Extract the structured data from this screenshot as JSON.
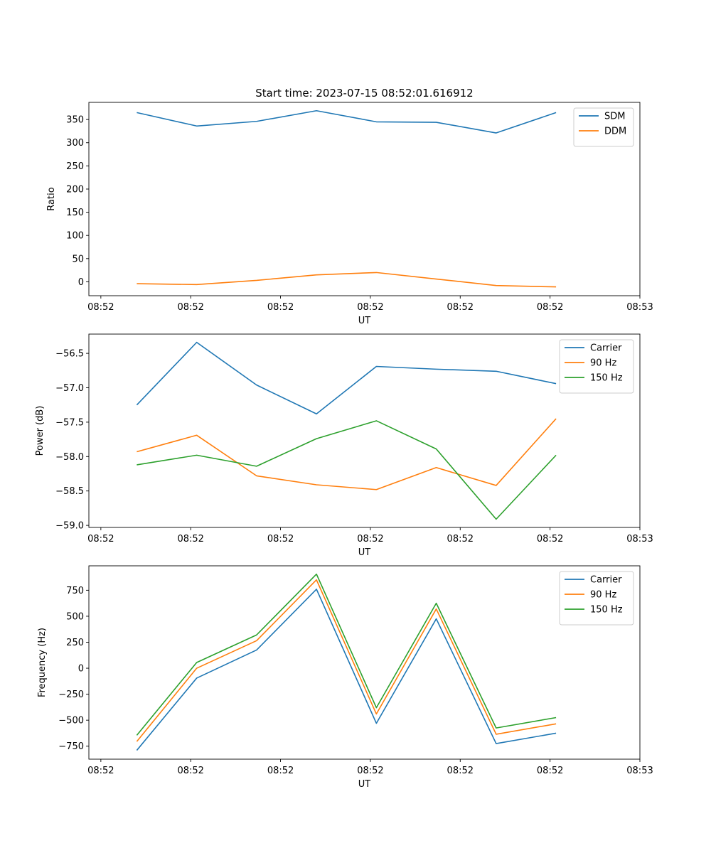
{
  "figure": {
    "title": "Start time: 2023-07-15 08:52:01.616912"
  },
  "colors": {
    "blue": "#1f77b4",
    "orange": "#ff7f0e",
    "green": "#2ca02c"
  },
  "chart_data": [
    {
      "type": "line",
      "title": "Start time: 2023-07-15 08:52:01.616912",
      "xlabel": "UT",
      "ylabel": "Ratio",
      "x": [
        1,
        2,
        3,
        4,
        5,
        6,
        7,
        8
      ],
      "xlim": [
        0.2,
        9.4
      ],
      "xticks": [
        0.4,
        1.9,
        3.4,
        4.9,
        6.4,
        7.9,
        9.4
      ],
      "xtick_labels": [
        "08:52",
        "08:52",
        "08:52",
        "08:52",
        "08:52",
        "08:52",
        "08:53"
      ],
      "ylim": [
        -30,
        387
      ],
      "yticks": [
        0,
        50,
        100,
        150,
        200,
        250,
        300,
        350
      ],
      "ytick_labels": [
        "0",
        "50",
        "100",
        "150",
        "200",
        "250",
        "300",
        "350"
      ],
      "legend_position": "top-right",
      "series": [
        {
          "name": "SDM",
          "color": "blue",
          "values": [
            365,
            336,
            346,
            369,
            345,
            344,
            321,
            365
          ]
        },
        {
          "name": "DDM",
          "color": "orange",
          "values": [
            -4,
            -6,
            3,
            15,
            20,
            6,
            -8,
            -11
          ]
        }
      ]
    },
    {
      "type": "line",
      "title": "",
      "xlabel": "UT",
      "ylabel": "Power (dB)",
      "x": [
        1,
        2,
        3,
        4,
        5,
        6,
        7,
        8
      ],
      "xlim": [
        0.2,
        9.4
      ],
      "xticks": [
        0.4,
        1.9,
        3.4,
        4.9,
        6.4,
        7.9,
        9.4
      ],
      "xtick_labels": [
        "08:52",
        "08:52",
        "08:52",
        "08:52",
        "08:52",
        "08:52",
        "08:53"
      ],
      "ylim": [
        -59.03,
        -56.22
      ],
      "yticks": [
        -59.0,
        -58.5,
        -58.0,
        -57.5,
        -57.0,
        -56.5
      ],
      "ytick_labels": [
        "−59.0",
        "−58.5",
        "−58.0",
        "−57.5",
        "−57.0",
        "−56.5"
      ],
      "legend_position": "top-right",
      "series": [
        {
          "name": "Carrier",
          "color": "blue",
          "values": [
            -57.25,
            -56.34,
            -56.96,
            -57.38,
            -56.69,
            -56.73,
            -56.76,
            -56.94
          ]
        },
        {
          "name": "90 Hz",
          "color": "orange",
          "values": [
            -57.93,
            -57.69,
            -58.28,
            -58.41,
            -58.48,
            -58.16,
            -58.42,
            -57.45
          ]
        },
        {
          "name": "150 Hz",
          "color": "green",
          "values": [
            -58.12,
            -57.98,
            -58.14,
            -57.74,
            -57.48,
            -57.89,
            -58.91,
            -57.98
          ]
        }
      ]
    },
    {
      "type": "line",
      "title": "",
      "xlabel": "UT",
      "ylabel": "Frequency (Hz)",
      "x": [
        1,
        2,
        3,
        4,
        5,
        6,
        7,
        8
      ],
      "xlim": [
        0.2,
        9.4
      ],
      "xticks": [
        0.4,
        1.9,
        3.4,
        4.9,
        6.4,
        7.9,
        9.4
      ],
      "xtick_labels": [
        "08:52",
        "08:52",
        "08:52",
        "08:52",
        "08:52",
        "08:52",
        "08:53"
      ],
      "ylim": [
        -875,
        985
      ],
      "yticks": [
        -750,
        -500,
        -250,
        0,
        250,
        500,
        750
      ],
      "ytick_labels": [
        "−750",
        "−500",
        "−250",
        "0",
        "250",
        "500",
        "750"
      ],
      "legend_position": "top-right",
      "series": [
        {
          "name": "Carrier",
          "color": "blue",
          "values": [
            -790,
            -95,
            175,
            760,
            -530,
            475,
            -725,
            -625
          ]
        },
        {
          "name": "90 Hz",
          "color": "orange",
          "values": [
            -705,
            0,
            265,
            850,
            -440,
            570,
            -635,
            -535
          ]
        },
        {
          "name": "150 Hz",
          "color": "green",
          "values": [
            -645,
            55,
            320,
            905,
            -380,
            625,
            -575,
            -475
          ]
        }
      ]
    }
  ]
}
